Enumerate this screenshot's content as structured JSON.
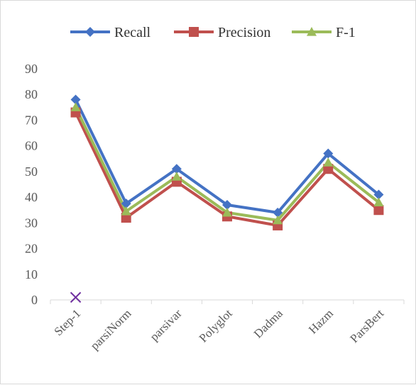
{
  "chart_data": {
    "type": "line",
    "categories": [
      "Step-1",
      "parsiNorm",
      "parsivar",
      "Polyglot",
      "Dadma",
      "Hazm",
      "ParsBert"
    ],
    "series": [
      {
        "name": "Recall",
        "color": "#4472c4",
        "marker": "diamond",
        "values": [
          78,
          37.5,
          51,
          37,
          34,
          57,
          41
        ]
      },
      {
        "name": "Precision",
        "color": "#c0504d",
        "marker": "square",
        "values": [
          73,
          32,
          46,
          32.5,
          29,
          51,
          35
        ]
      },
      {
        "name": "F-1",
        "color": "#9bbb59",
        "marker": "triangle",
        "values": [
          75,
          34.5,
          48,
          34,
          31,
          53.5,
          38
        ]
      }
    ],
    "extra_point": {
      "category": "Step-1",
      "value": 1,
      "marker": "x",
      "color": "#7030a0"
    },
    "yticks": [
      "0",
      "10",
      "20",
      "30",
      "40",
      "50",
      "60",
      "70",
      "80",
      "90"
    ],
    "ylim": [
      0,
      90
    ],
    "grid": false,
    "legend_position": "top",
    "title": "",
    "xlabel": "",
    "ylabel": ""
  }
}
